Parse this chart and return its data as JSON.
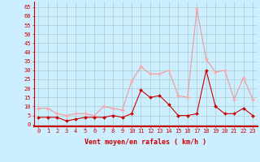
{
  "x": [
    0,
    1,
    2,
    3,
    4,
    5,
    6,
    7,
    8,
    9,
    10,
    11,
    12,
    13,
    14,
    15,
    16,
    17,
    18,
    19,
    20,
    21,
    22,
    23
  ],
  "wind_avg": [
    4,
    4,
    4,
    2,
    3,
    4,
    4,
    4,
    5,
    4,
    6,
    19,
    15,
    16,
    11,
    5,
    5,
    6,
    30,
    10,
    6,
    6,
    9,
    5
  ],
  "wind_gust": [
    9,
    9,
    6,
    5,
    6,
    6,
    5,
    10,
    9,
    8,
    24,
    32,
    28,
    28,
    30,
    16,
    15,
    64,
    36,
    29,
    30,
    14,
    26,
    14
  ],
  "bg_color": "#cceeff",
  "grid_color": "#aacccc",
  "line_avg_color": "#cc0000",
  "line_gust_color": "#ee9999",
  "marker_avg_color": "#cc0000",
  "marker_gust_color": "#ffaaaa",
  "xlabel": "Vent moyen/en rafales ( km/h )",
  "ylabel_ticks": [
    0,
    5,
    10,
    15,
    20,
    25,
    30,
    35,
    40,
    45,
    50,
    55,
    60,
    65
  ],
  "ylim": [
    -1,
    68
  ],
  "xlim": [
    -0.5,
    23.5
  ],
  "xlabel_color": "#cc0000",
  "tick_color": "#cc0000",
  "axis_color": "#cc0000",
  "tick_fontsize": 5.0,
  "xlabel_fontsize": 6.0
}
